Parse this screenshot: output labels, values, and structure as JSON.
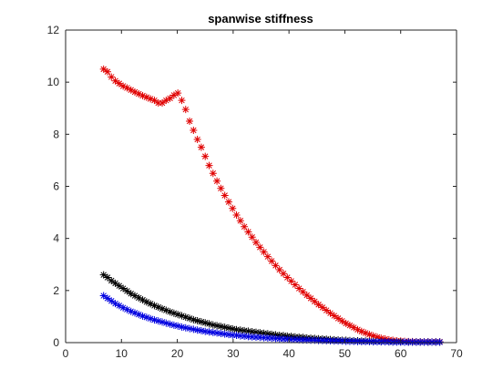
{
  "chart_data": {
    "type": "scatter",
    "title": "spanwise stiffness",
    "xlabel": "",
    "ylabel": "",
    "xlim": [
      0,
      70
    ],
    "ylim": [
      0,
      12
    ],
    "xticks": [
      0,
      10,
      20,
      30,
      40,
      50,
      60,
      70
    ],
    "yticks": [
      0,
      2,
      4,
      6,
      8,
      10,
      12
    ],
    "grid": false,
    "legend": "none",
    "marker": "asterisk",
    "series": [
      {
        "color": "#e00000",
        "points": [
          [
            6.8,
            10.5
          ],
          [
            7.5,
            10.4
          ],
          [
            8.2,
            10.2
          ],
          [
            8.9,
            10.05
          ],
          [
            9.6,
            9.95
          ],
          [
            10.3,
            9.85
          ],
          [
            11.0,
            9.78
          ],
          [
            11.7,
            9.7
          ],
          [
            12.4,
            9.62
          ],
          [
            13.1,
            9.55
          ],
          [
            13.8,
            9.48
          ],
          [
            14.5,
            9.42
          ],
          [
            15.2,
            9.36
          ],
          [
            15.9,
            9.3
          ],
          [
            16.6,
            9.2
          ],
          [
            17.3,
            9.2
          ],
          [
            18.0,
            9.3
          ],
          [
            18.7,
            9.38
          ],
          [
            19.4,
            9.5
          ],
          [
            20.1,
            9.58
          ],
          [
            20.8,
            9.3
          ],
          [
            21.5,
            8.95
          ],
          [
            22.2,
            8.5
          ],
          [
            22.9,
            8.15
          ],
          [
            23.6,
            7.8
          ],
          [
            24.3,
            7.5
          ],
          [
            25.0,
            7.15
          ],
          [
            25.7,
            6.8
          ],
          [
            26.4,
            6.5
          ],
          [
            27.1,
            6.2
          ],
          [
            27.8,
            5.92
          ],
          [
            28.5,
            5.65
          ],
          [
            29.2,
            5.4
          ],
          [
            29.9,
            5.15
          ],
          [
            30.6,
            4.9
          ],
          [
            31.3,
            4.68
          ],
          [
            32.0,
            4.45
          ],
          [
            32.7,
            4.25
          ],
          [
            33.4,
            4.05
          ],
          [
            34.1,
            3.85
          ],
          [
            34.8,
            3.66
          ],
          [
            35.5,
            3.48
          ],
          [
            36.2,
            3.3
          ],
          [
            36.9,
            3.13
          ],
          [
            37.6,
            2.96
          ],
          [
            38.3,
            2.8
          ],
          [
            39.0,
            2.65
          ],
          [
            39.7,
            2.5
          ],
          [
            40.4,
            2.36
          ],
          [
            41.1,
            2.22
          ],
          [
            41.8,
            2.08
          ],
          [
            42.5,
            1.95
          ],
          [
            43.2,
            1.82
          ],
          [
            43.9,
            1.7
          ],
          [
            44.6,
            1.58
          ],
          [
            45.3,
            1.46
          ],
          [
            46.0,
            1.35
          ],
          [
            46.7,
            1.24
          ],
          [
            47.4,
            1.13
          ],
          [
            48.1,
            1.03
          ],
          [
            48.8,
            0.93
          ],
          [
            49.5,
            0.83
          ],
          [
            50.2,
            0.74
          ],
          [
            50.9,
            0.66
          ],
          [
            51.6,
            0.58
          ],
          [
            52.3,
            0.5
          ],
          [
            53.0,
            0.43
          ],
          [
            53.7,
            0.37
          ],
          [
            54.4,
            0.31
          ],
          [
            55.1,
            0.26
          ],
          [
            55.8,
            0.21
          ],
          [
            56.5,
            0.17
          ],
          [
            57.2,
            0.14
          ],
          [
            57.9,
            0.11
          ],
          [
            58.6,
            0.09
          ],
          [
            59.3,
            0.07
          ],
          [
            60.0,
            0.06
          ],
          [
            60.7,
            0.05
          ],
          [
            61.4,
            0.04
          ],
          [
            62.1,
            0.04
          ],
          [
            62.8,
            0.03
          ],
          [
            63.5,
            0.03
          ],
          [
            64.2,
            0.03
          ],
          [
            64.9,
            0.03
          ],
          [
            65.6,
            0.03
          ],
          [
            66.3,
            0.03
          ],
          [
            67.0,
            0.03
          ]
        ]
      },
      {
        "color": "#000000",
        "points": [
          [
            6.8,
            2.6
          ],
          [
            7.5,
            2.5
          ],
          [
            8.2,
            2.38
          ],
          [
            8.9,
            2.28
          ],
          [
            9.6,
            2.18
          ],
          [
            10.3,
            2.08
          ],
          [
            11.0,
            1.98
          ],
          [
            11.7,
            1.88
          ],
          [
            12.4,
            1.8
          ],
          [
            13.1,
            1.72
          ],
          [
            13.8,
            1.64
          ],
          [
            14.5,
            1.56
          ],
          [
            15.2,
            1.49
          ],
          [
            15.9,
            1.42
          ],
          [
            16.6,
            1.36
          ],
          [
            17.3,
            1.3
          ],
          [
            18.0,
            1.24
          ],
          [
            18.7,
            1.18
          ],
          [
            19.4,
            1.13
          ],
          [
            20.1,
            1.08
          ],
          [
            20.8,
            1.03
          ],
          [
            21.5,
            0.98
          ],
          [
            22.2,
            0.93
          ],
          [
            22.9,
            0.88
          ],
          [
            23.6,
            0.84
          ],
          [
            24.3,
            0.8
          ],
          [
            25.0,
            0.76
          ],
          [
            25.7,
            0.72
          ],
          [
            26.4,
            0.68
          ],
          [
            27.1,
            0.65
          ],
          [
            27.8,
            0.62
          ],
          [
            28.5,
            0.59
          ],
          [
            29.2,
            0.56
          ],
          [
            29.9,
            0.53
          ],
          [
            30.6,
            0.5
          ],
          [
            31.3,
            0.48
          ],
          [
            32.0,
            0.46
          ],
          [
            32.7,
            0.44
          ],
          [
            33.4,
            0.42
          ],
          [
            34.1,
            0.4
          ],
          [
            34.8,
            0.38
          ],
          [
            35.5,
            0.36
          ],
          [
            36.2,
            0.34
          ],
          [
            36.9,
            0.32
          ],
          [
            37.6,
            0.3
          ],
          [
            38.3,
            0.28
          ],
          [
            39.0,
            0.27
          ],
          [
            39.7,
            0.25
          ],
          [
            40.4,
            0.24
          ],
          [
            41.1,
            0.22
          ],
          [
            41.8,
            0.21
          ],
          [
            42.5,
            0.2
          ],
          [
            43.2,
            0.18
          ],
          [
            43.9,
            0.17
          ],
          [
            44.6,
            0.16
          ],
          [
            45.3,
            0.15
          ],
          [
            46.0,
            0.14
          ],
          [
            46.7,
            0.13
          ],
          [
            47.4,
            0.12
          ],
          [
            48.1,
            0.11
          ],
          [
            48.8,
            0.1
          ],
          [
            49.5,
            0.09
          ],
          [
            50.2,
            0.09
          ],
          [
            50.9,
            0.08
          ],
          [
            51.6,
            0.07
          ],
          [
            52.3,
            0.07
          ],
          [
            53.0,
            0.06
          ],
          [
            53.7,
            0.06
          ],
          [
            54.4,
            0.05
          ],
          [
            55.1,
            0.05
          ],
          [
            55.8,
            0.04
          ],
          [
            56.5,
            0.04
          ],
          [
            57.2,
            0.04
          ],
          [
            57.9,
            0.03
          ],
          [
            58.6,
            0.03
          ],
          [
            59.3,
            0.03
          ],
          [
            60.0,
            0.03
          ],
          [
            60.7,
            0.02
          ],
          [
            61.4,
            0.02
          ],
          [
            62.1,
            0.02
          ],
          [
            62.8,
            0.02
          ],
          [
            63.5,
            0.02
          ],
          [
            64.2,
            0.02
          ],
          [
            64.9,
            0.02
          ],
          [
            65.6,
            0.02
          ],
          [
            66.3,
            0.02
          ],
          [
            67.0,
            0.02
          ]
        ]
      },
      {
        "color": "#0000e0",
        "points": [
          [
            6.8,
            1.8
          ],
          [
            7.5,
            1.7
          ],
          [
            8.2,
            1.6
          ],
          [
            8.9,
            1.5
          ],
          [
            9.6,
            1.42
          ],
          [
            10.3,
            1.34
          ],
          [
            11.0,
            1.27
          ],
          [
            11.7,
            1.2
          ],
          [
            12.4,
            1.14
          ],
          [
            13.1,
            1.08
          ],
          [
            13.8,
            1.02
          ],
          [
            14.5,
            0.97
          ],
          [
            15.2,
            0.92
          ],
          [
            15.9,
            0.87
          ],
          [
            16.6,
            0.83
          ],
          [
            17.3,
            0.79
          ],
          [
            18.0,
            0.75
          ],
          [
            18.7,
            0.71
          ],
          [
            19.4,
            0.67
          ],
          [
            20.1,
            0.64
          ],
          [
            20.8,
            0.6
          ],
          [
            21.5,
            0.57
          ],
          [
            22.2,
            0.54
          ],
          [
            22.9,
            0.51
          ],
          [
            23.6,
            0.48
          ],
          [
            24.3,
            0.46
          ],
          [
            25.0,
            0.43
          ],
          [
            25.7,
            0.41
          ],
          [
            26.4,
            0.39
          ],
          [
            27.1,
            0.37
          ],
          [
            27.8,
            0.35
          ],
          [
            28.5,
            0.33
          ],
          [
            29.2,
            0.31
          ],
          [
            29.9,
            0.29
          ],
          [
            30.6,
            0.28
          ],
          [
            31.3,
            0.26
          ],
          [
            32.0,
            0.25
          ],
          [
            32.7,
            0.23
          ],
          [
            33.4,
            0.22
          ],
          [
            34.1,
            0.21
          ],
          [
            34.8,
            0.2
          ],
          [
            35.5,
            0.19
          ],
          [
            36.2,
            0.18
          ],
          [
            36.9,
            0.17
          ],
          [
            37.6,
            0.16
          ],
          [
            38.3,
            0.15
          ],
          [
            39.0,
            0.14
          ],
          [
            39.7,
            0.13
          ],
          [
            40.4,
            0.12
          ],
          [
            41.1,
            0.12
          ],
          [
            41.8,
            0.11
          ],
          [
            42.5,
            0.1
          ],
          [
            43.2,
            0.1
          ],
          [
            43.9,
            0.09
          ],
          [
            44.6,
            0.09
          ],
          [
            45.3,
            0.08
          ],
          [
            46.0,
            0.08
          ],
          [
            46.7,
            0.07
          ],
          [
            47.4,
            0.07
          ],
          [
            48.1,
            0.06
          ],
          [
            48.8,
            0.06
          ],
          [
            49.5,
            0.06
          ],
          [
            50.2,
            0.05
          ],
          [
            50.9,
            0.05
          ],
          [
            51.6,
            0.05
          ],
          [
            52.3,
            0.04
          ],
          [
            53.0,
            0.04
          ],
          [
            53.7,
            0.04
          ],
          [
            54.4,
            0.04
          ],
          [
            55.1,
            0.03
          ],
          [
            55.8,
            0.03
          ],
          [
            56.5,
            0.03
          ],
          [
            57.2,
            0.03
          ],
          [
            57.9,
            0.03
          ],
          [
            58.6,
            0.02
          ],
          [
            59.3,
            0.02
          ],
          [
            60.0,
            0.02
          ],
          [
            60.7,
            0.02
          ],
          [
            61.4,
            0.02
          ],
          [
            62.1,
            0.02
          ],
          [
            62.8,
            0.02
          ],
          [
            63.5,
            0.02
          ],
          [
            64.2,
            0.02
          ],
          [
            64.9,
            0.02
          ],
          [
            65.6,
            0.02
          ],
          [
            66.3,
            0.02
          ],
          [
            67.0,
            0.02
          ]
        ]
      }
    ]
  }
}
